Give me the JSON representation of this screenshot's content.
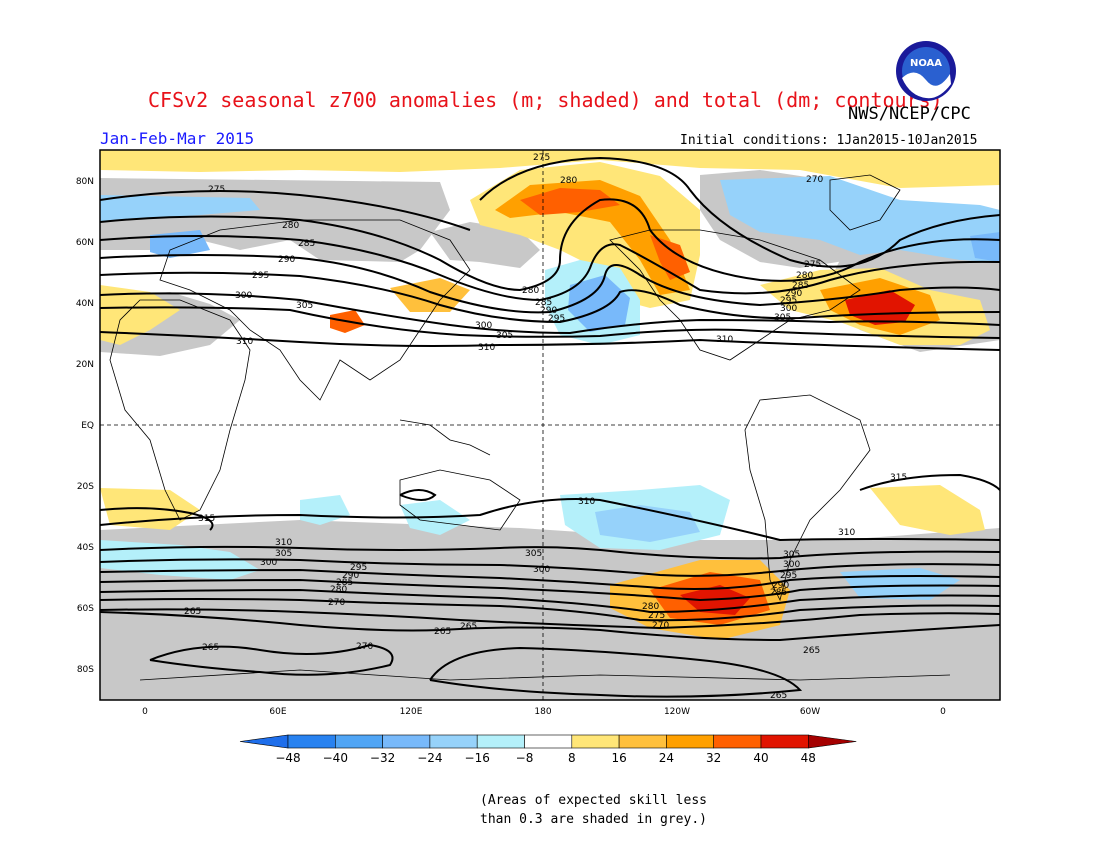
{
  "header": {
    "title": "CFSv2 seasonal z700 anomalies (m; shaded) and total (dm; contours)",
    "agency": "NWS/NCEP/CPC",
    "period": "Jan-Feb-Mar 2015",
    "initial_conditions": "Initial conditions: 1Jan2015-10Jan2015",
    "logo_text": "NOAA"
  },
  "map": {
    "lat_labels": [
      "80N",
      "60N",
      "40N",
      "20N",
      "EQ",
      "20S",
      "40S",
      "60S",
      "80S"
    ],
    "lon_labels": [
      "0",
      "60E",
      "120E",
      "180",
      "120W",
      "60W",
      "0"
    ],
    "contour_labels": [
      "275",
      "280",
      "285",
      "290",
      "295",
      "300",
      "305",
      "310",
      "315",
      "270",
      "265"
    ],
    "colors": {
      "grey": "#c8c8c8",
      "neg8": "#b4f0fa",
      "neg16": "#96d2fa",
      "neg24": "#78b9fa",
      "neg32": "#50a5f5",
      "pos8": "#ffe678",
      "pos16": "#ffc03c",
      "pos24": "#ffa000",
      "pos32": "#ff6000",
      "pos40": "#e11400"
    }
  },
  "colorbar": {
    "ticks": [
      "−48",
      "−40",
      "−32",
      "−24",
      "−16",
      "−8",
      "8",
      "16",
      "24",
      "32",
      "40",
      "48"
    ],
    "colors": [
      "#1e6eeb",
      "#2882f0",
      "#50a5f5",
      "#78b9fa",
      "#96d2fa",
      "#b4f0fa",
      "#ffffff",
      "#ffe678",
      "#ffc03c",
      "#ffa000",
      "#ff6000",
      "#e11400",
      "#a50000"
    ]
  },
  "footnote": {
    "line1": "(Areas of expected skill less",
    "line2": "than 0.3 are shaded in grey.)"
  }
}
